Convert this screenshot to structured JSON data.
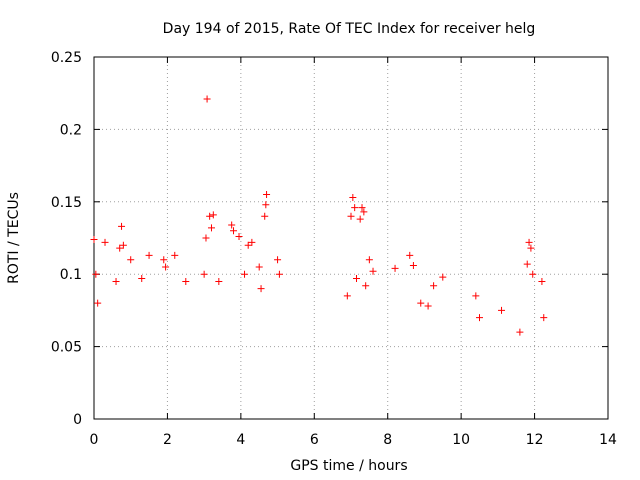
{
  "chart_data": {
    "type": "scatter",
    "title": "Day 194 of 2015, Rate Of TEC Index for receiver helg",
    "xlabel": "GPS time / hours",
    "ylabel": "ROTI / TECUs",
    "xlim": [
      0,
      14
    ],
    "ylim": [
      0,
      0.25
    ],
    "xticks": [
      0,
      2,
      4,
      6,
      8,
      10,
      12,
      14
    ],
    "yticks": [
      0,
      0.05,
      0.1,
      0.15,
      0.2,
      0.25
    ],
    "xtick_labels": [
      "0",
      "2",
      "4",
      "6",
      "8",
      "10",
      "12",
      "14"
    ],
    "ytick_labels": [
      "0",
      "0.05",
      "0.1",
      "0.15",
      "0.2",
      "0.25"
    ],
    "grid": true,
    "marker": "+",
    "color": "#ff0000",
    "series": [
      {
        "name": "ROTI",
        "points": [
          [
            3.08,
            0.221
          ],
          [
            4.7,
            0.155
          ],
          [
            4.68,
            0.148
          ],
          [
            4.65,
            0.14
          ],
          [
            7.05,
            0.153
          ],
          [
            7.1,
            0.146
          ],
          [
            7.0,
            0.14
          ],
          [
            7.3,
            0.146
          ],
          [
            7.35,
            0.143
          ],
          [
            7.25,
            0.138
          ],
          [
            3.15,
            0.14
          ],
          [
            3.25,
            0.141
          ],
          [
            3.2,
            0.132
          ],
          [
            3.05,
            0.125
          ],
          [
            3.75,
            0.134
          ],
          [
            3.8,
            0.13
          ],
          [
            3.95,
            0.126
          ],
          [
            4.3,
            0.122
          ],
          [
            4.2,
            0.12
          ],
          [
            0.0,
            0.124
          ],
          [
            0.3,
            0.122
          ],
          [
            0.75,
            0.133
          ],
          [
            0.7,
            0.118
          ],
          [
            0.8,
            0.12
          ],
          [
            1.0,
            0.11
          ],
          [
            1.5,
            0.113
          ],
          [
            1.9,
            0.11
          ],
          [
            1.95,
            0.105
          ],
          [
            2.2,
            0.113
          ],
          [
            5.0,
            0.11
          ],
          [
            5.05,
            0.1
          ],
          [
            7.5,
            0.11
          ],
          [
            7.6,
            0.102
          ],
          [
            8.6,
            0.113
          ],
          [
            8.7,
            0.106
          ],
          [
            8.2,
            0.104
          ],
          [
            9.25,
            0.092
          ],
          [
            9.5,
            0.098
          ],
          [
            11.85,
            0.122
          ],
          [
            11.9,
            0.118
          ],
          [
            11.8,
            0.107
          ],
          [
            11.95,
            0.1
          ],
          [
            12.2,
            0.095
          ],
          [
            0.05,
            0.1
          ],
          [
            0.1,
            0.08
          ],
          [
            0.6,
            0.095
          ],
          [
            1.3,
            0.097
          ],
          [
            2.5,
            0.095
          ],
          [
            3.0,
            0.1
          ],
          [
            3.4,
            0.095
          ],
          [
            4.1,
            0.1
          ],
          [
            4.5,
            0.105
          ],
          [
            4.55,
            0.09
          ],
          [
            6.9,
            0.085
          ],
          [
            7.4,
            0.092
          ],
          [
            7.15,
            0.097
          ],
          [
            8.9,
            0.08
          ],
          [
            9.1,
            0.078
          ],
          [
            10.4,
            0.085
          ],
          [
            10.5,
            0.07
          ],
          [
            11.1,
            0.075
          ],
          [
            11.6,
            0.06
          ],
          [
            12.25,
            0.07
          ]
        ]
      }
    ]
  }
}
